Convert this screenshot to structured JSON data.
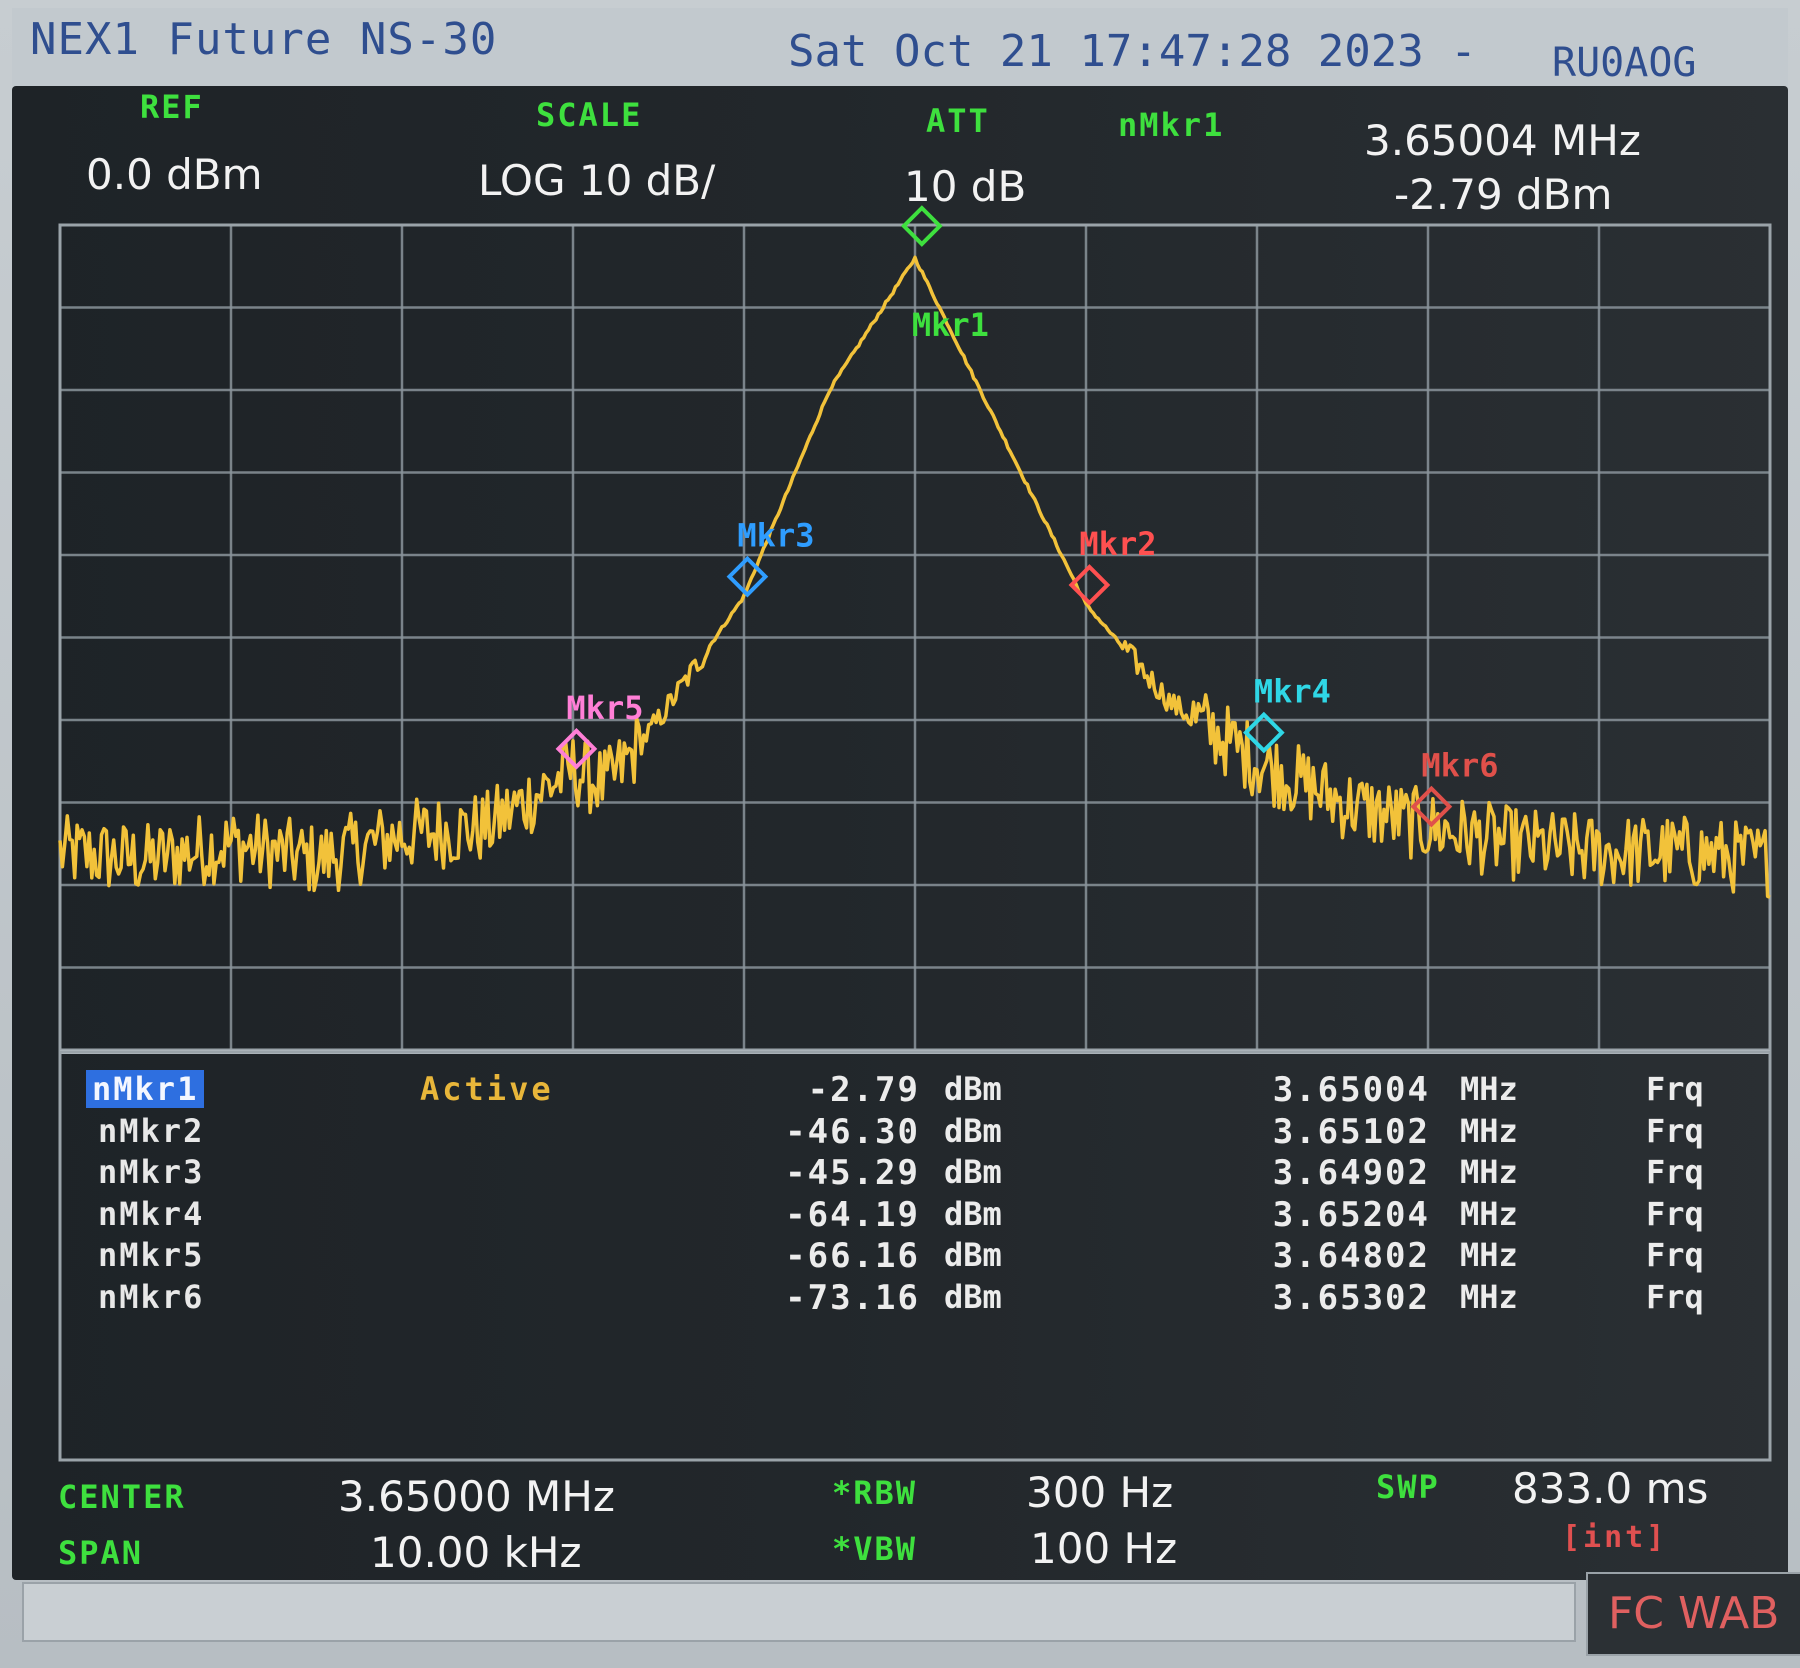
{
  "title_bar": {
    "instrument": "NEX1 Future NS-30",
    "datetime": "Sat Oct 21 17:47:28 2023 -",
    "callsign": "RU0AOG"
  },
  "header": {
    "ref_label": "REF",
    "ref_value": "0.0 dBm",
    "scale_label": "SCALE",
    "scale_value": "LOG 10 dB/",
    "att_label": "ATT",
    "att_value": "10 dB",
    "marker_label": "nMkr1",
    "marker_freq": "3.65004 MHz",
    "marker_amp": "-2.79 dBm"
  },
  "chart_data": {
    "type": "line",
    "title": "",
    "xlabel": "",
    "ylabel": "",
    "x_unit": "MHz",
    "y_unit": "dBm",
    "xlim": [
      3.645,
      3.655
    ],
    "ylim": [
      -100,
      0
    ],
    "grid": true,
    "x": [
      3.645,
      3.6455,
      3.646,
      3.6465,
      3.647,
      3.6475,
      3.648,
      3.6482,
      3.6485,
      3.649,
      3.6495,
      3.65,
      3.6505,
      3.651,
      3.6515,
      3.652,
      3.6525,
      3.653,
      3.6535,
      3.654,
      3.6545,
      3.655
    ],
    "series": [
      {
        "values": [
          -76,
          -77,
          -75,
          -77,
          -74,
          -73,
          -66,
          -68,
          -60,
          -45,
          -20,
          -4,
          -25,
          -46,
          -58,
          -65,
          -70,
          -73,
          -75,
          -76,
          -76,
          -77
        ]
      }
    ],
    "markers": [
      {
        "label": "Mkr1",
        "x": 3.65004,
        "y": -2.79,
        "color": "#3ee03e"
      },
      {
        "label": "Mkr2",
        "x": 3.65102,
        "y": -46.3,
        "color": "#ff5050"
      },
      {
        "label": "Mkr3",
        "x": 3.64902,
        "y": -45.29,
        "color": "#2f9dff"
      },
      {
        "label": "Mkr4",
        "x": 3.65204,
        "y": -64.19,
        "color": "#2fd7e6"
      },
      {
        "label": "Mkr5",
        "x": 3.64802,
        "y": -66.16,
        "color": "#ff7fd6"
      },
      {
        "label": "Mkr6",
        "x": 3.65302,
        "y": -73.16,
        "color": "#e0504a"
      }
    ],
    "trace_color": "#f2c23a",
    "grid_color": "#8a949b"
  },
  "marker_table": [
    {
      "name": "nMkr1",
      "state": "Active",
      "amp": "-2.79",
      "amp_unit": "dBm",
      "freq": "3.65004",
      "freq_unit": "MHz",
      "mode": "Frq"
    },
    {
      "name": "nMkr2",
      "state": "",
      "amp": "-46.30",
      "amp_unit": "dBm",
      "freq": "3.65102",
      "freq_unit": "MHz",
      "mode": "Frq"
    },
    {
      "name": "nMkr3",
      "state": "",
      "amp": "-45.29",
      "amp_unit": "dBm",
      "freq": "3.64902",
      "freq_unit": "MHz",
      "mode": "Frq"
    },
    {
      "name": "nMkr4",
      "state": "",
      "amp": "-64.19",
      "amp_unit": "dBm",
      "freq": "3.65204",
      "freq_unit": "MHz",
      "mode": "Frq"
    },
    {
      "name": "nMkr5",
      "state": "",
      "amp": "-66.16",
      "amp_unit": "dBm",
      "freq": "3.64802",
      "freq_unit": "MHz",
      "mode": "Frq"
    },
    {
      "name": "nMkr6",
      "state": "",
      "amp": "-73.16",
      "amp_unit": "dBm",
      "freq": "3.65302",
      "freq_unit": "MHz",
      "mode": "Frq"
    }
  ],
  "footer": {
    "center_label": "CENTER",
    "center_value": "3.65000 MHz",
    "span_label": "SPAN",
    "span_value": "10.00 kHz",
    "rbw_label": "*RBW",
    "rbw_value": "300 Hz",
    "vbw_label": "*VBW",
    "vbw_value": "100 Hz",
    "swp_label": "SWP",
    "swp_value": "833.0 ms",
    "swp_mode": "[int]"
  },
  "status_bar": {
    "right_text": "FC WAB"
  }
}
